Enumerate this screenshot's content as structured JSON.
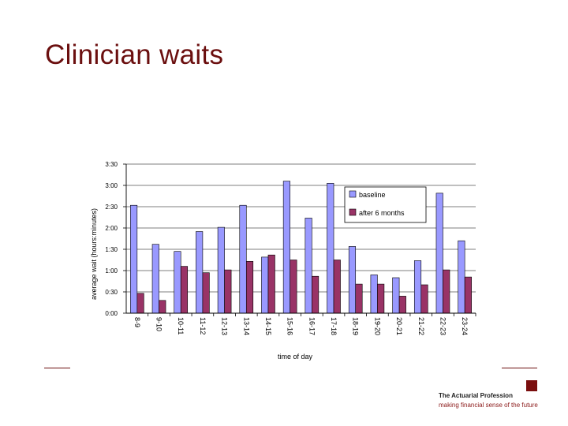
{
  "slide": {
    "title": "Clinician waits"
  },
  "branding": {
    "org_name": "The Actuarial Profession",
    "tagline": "making financial sense of the future",
    "accent_color": "#7a0e0e"
  },
  "chart_data": {
    "type": "bar",
    "title": "",
    "xlabel": "time of day",
    "ylabel": "average wait (hours:minutes)",
    "categories": [
      "8-9",
      "9-10",
      "10-11",
      "11-12",
      "12-13",
      "13-14",
      "14-15",
      "15-16",
      "16-17",
      "17-18",
      "18-19",
      "19-20",
      "20-21",
      "21-22",
      "22-23",
      "23-24"
    ],
    "series": [
      {
        "name": "baseline",
        "color": "#9999ff",
        "values": [
          152,
          97,
          87,
          115,
          121,
          152,
          79,
          186,
          134,
          183,
          94,
          54,
          50,
          74,
          169,
          102
        ]
      },
      {
        "name": "after 6 months",
        "color": "#993366",
        "values": [
          28,
          18,
          66,
          57,
          61,
          73,
          82,
          75,
          52,
          75,
          41,
          41,
          24,
          40,
          61,
          51
        ]
      }
    ],
    "y_unit": "minutes",
    "ylim": [
      0,
      210
    ],
    "y_tick_labels": [
      "0:00",
      "0:30",
      "1:00",
      "1:30",
      "2:00",
      "2:30",
      "3:00",
      "3:30"
    ],
    "grid": true,
    "legend_position": "top-right"
  }
}
